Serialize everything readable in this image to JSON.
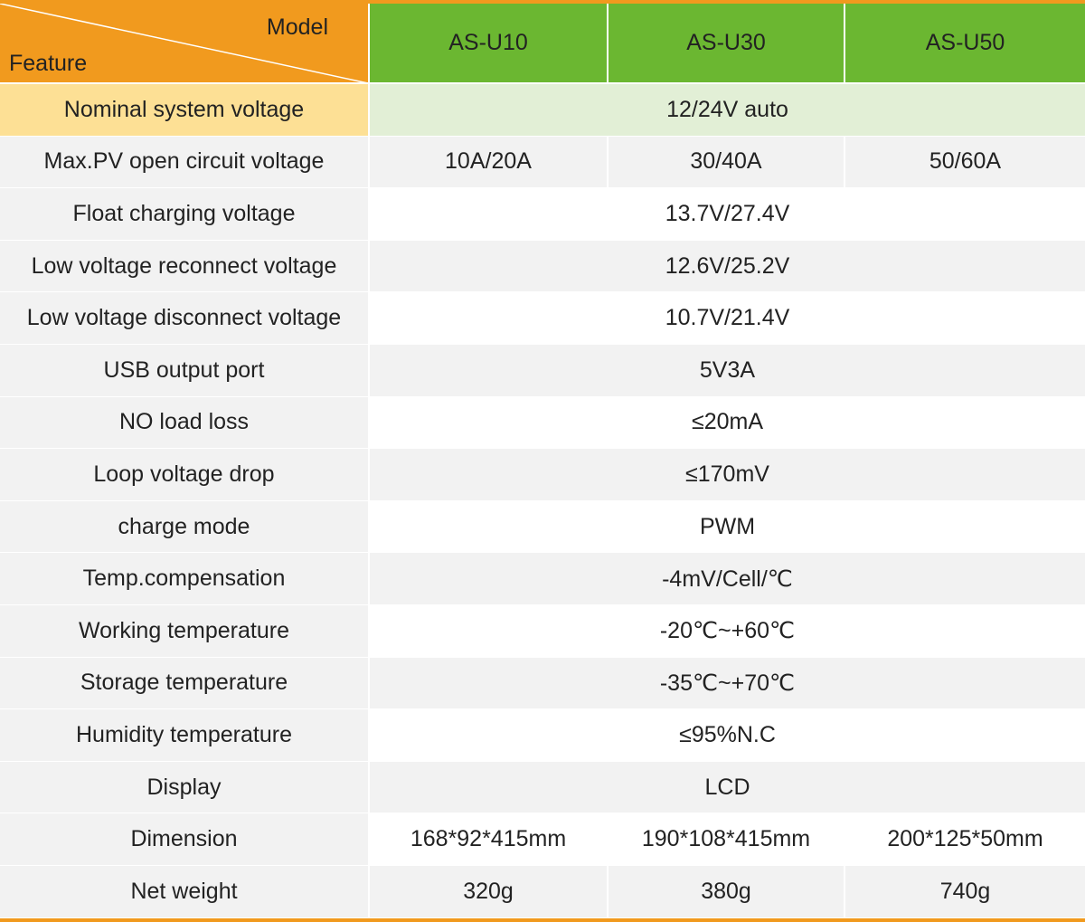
{
  "header": {
    "model_label": "Model",
    "feature_label": "Feature",
    "models": [
      "AS-U10",
      "AS-U30",
      "AS-U50"
    ]
  },
  "rows": [
    {
      "feature": "Nominal system voltage",
      "value": "12/24V auto"
    },
    {
      "feature": "Max.PV open circuit voltage",
      "values": [
        "10A/20A",
        "30/40A",
        "50/60A"
      ]
    },
    {
      "feature": "Float charging voltage",
      "value": "13.7V/27.4V"
    },
    {
      "feature": "Low voltage reconnect voltage",
      "value": "12.6V/25.2V"
    },
    {
      "feature": "Low voltage disconnect voltage",
      "value": "10.7V/21.4V"
    },
    {
      "feature": "USB output port",
      "value": "5V3A"
    },
    {
      "feature": "NO load loss",
      "value": "≤20mA"
    },
    {
      "feature": "Loop voltage drop",
      "value": "≤170mV"
    },
    {
      "feature": "charge mode",
      "value": "PWM"
    },
    {
      "feature": "Temp.compensation",
      "value": "-4mV/Cell/℃"
    },
    {
      "feature": "Working temperature",
      "value": "-20℃~+60℃"
    },
    {
      "feature": "Storage temperature",
      "value": "-35℃~+70℃"
    },
    {
      "feature": "Humidity temperature",
      "value": "≤95%N.C"
    },
    {
      "feature": "Display",
      "value": "LCD"
    },
    {
      "feature": "Dimension",
      "values": [
        "168*92*415mm",
        "190*108*415mm",
        "200*125*50mm"
      ]
    },
    {
      "feature": "Net weight",
      "values": [
        "320g",
        "380g",
        "740g"
      ]
    }
  ],
  "colors": {
    "header_orange": "#f19a1e",
    "header_green": "#6bb731",
    "highlight_feature": "#fde095",
    "highlight_value": "#e2efd6",
    "row_gray": "#f2f2f2"
  }
}
